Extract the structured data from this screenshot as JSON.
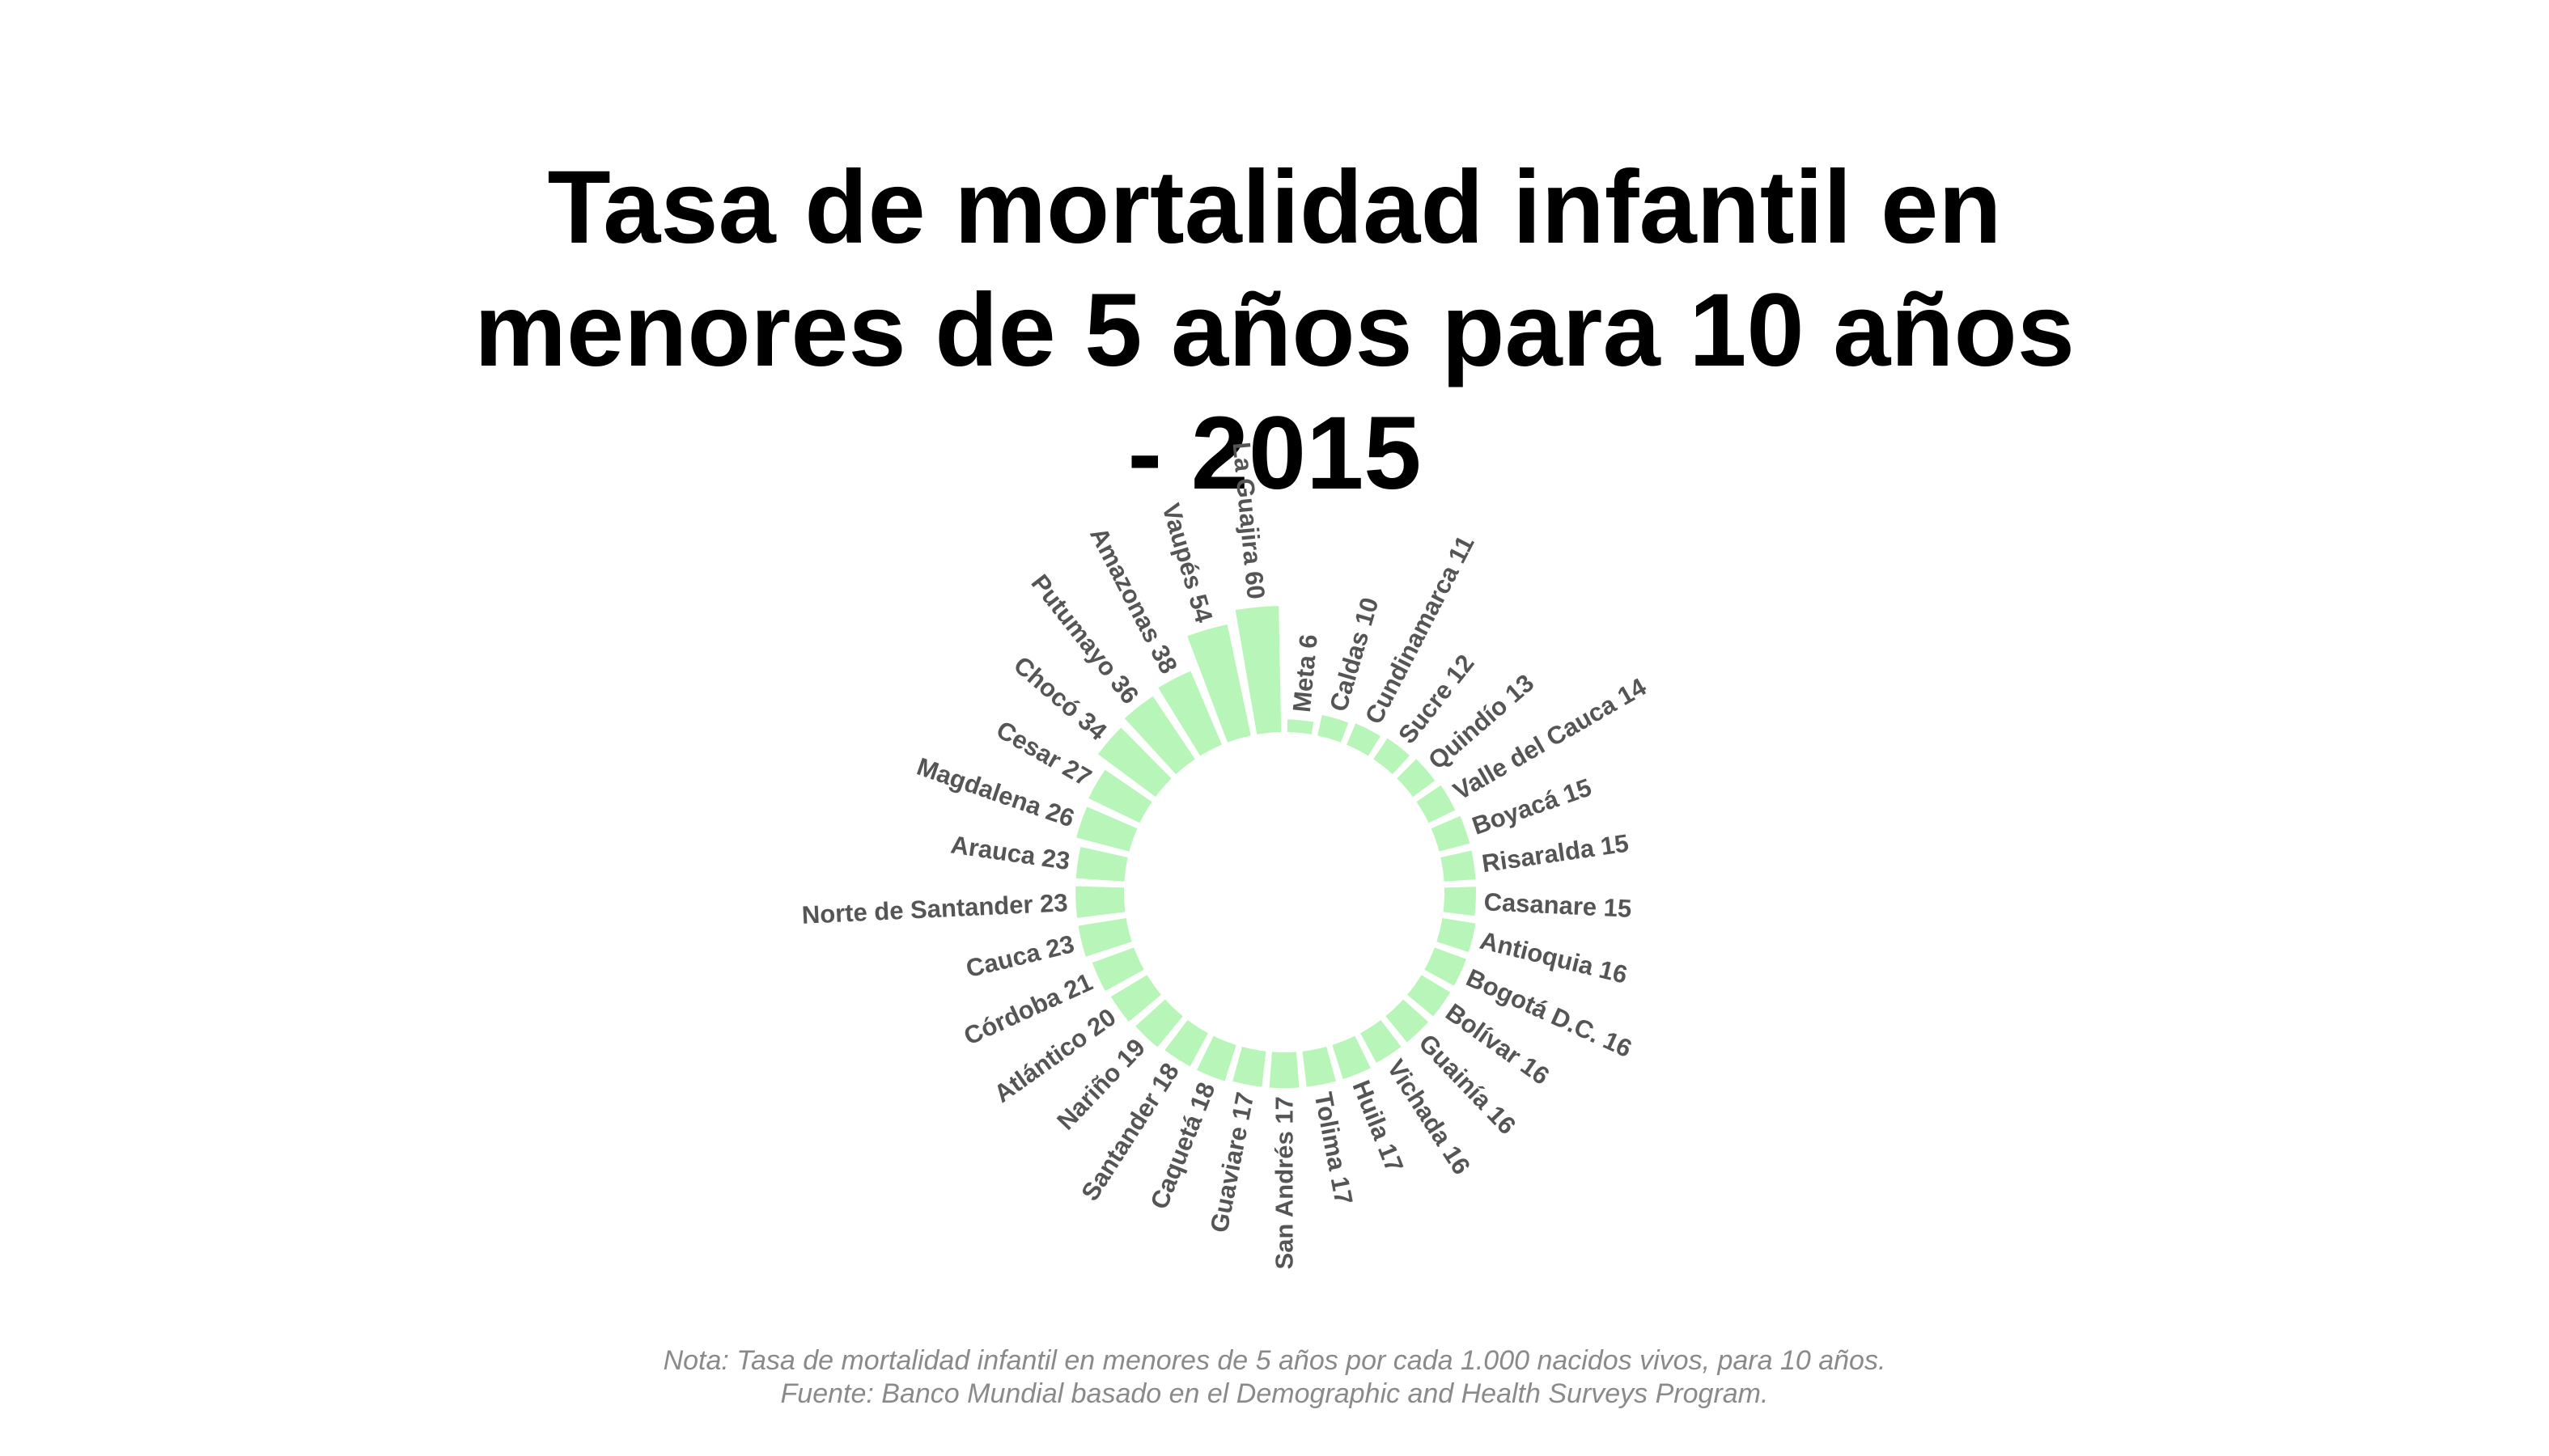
{
  "chart_data": {
    "type": "circular-bar",
    "title_lines": [
      "Tasa de mortalidad infantil en",
      "menores de 5 años para 10 años",
      "- 2015"
    ],
    "caption_lines": [
      "Nota: Tasa de mortalidad infantil en menores de 5 años por cada 1.000 nacidos vivos, para 10 años.",
      "Fuente: Banco Mundial basado en el Demographic and Health Surveys Program."
    ],
    "bar_color": "#b8f5b8",
    "label_color": "#555555",
    "categories": [
      "Meta",
      "Caldas",
      "Cundinamarca",
      "Sucre",
      "Quindío",
      "Valle del Cauca",
      "Boyacá",
      "Risaralda",
      "Casanare",
      "Antioquia",
      "Bogotá D.C.",
      "Bolívar",
      "Guainía",
      "Vichada",
      "Huila",
      "Tolima",
      "San Andrés",
      "Guaviare",
      "Caquetá",
      "Santander",
      "Nariño",
      "Atlántico",
      "Córdoba",
      "Cauca",
      "Norte de Santander",
      "Arauca",
      "Magdalena",
      "Cesar",
      "Chocó",
      "Putumayo",
      "Amazonas",
      "Vaupés",
      "La Guajira"
    ],
    "values": [
      6,
      10,
      11,
      12,
      13,
      14,
      15,
      15,
      15,
      16,
      16,
      16,
      16,
      16,
      17,
      17,
      17,
      17,
      18,
      18,
      19,
      20,
      21,
      23,
      23,
      23,
      26,
      27,
      34,
      36,
      38,
      54,
      60
    ],
    "labels": [
      "Meta 6",
      "Caldas 10",
      "Cundinamarca 11",
      "Sucre 12",
      "Quindío 13",
      "Valle del Cauca 14",
      "Boyacá 15",
      "Risaralda 15",
      "Casanare 15",
      "Antioquia 16",
      "Bogotá D.C. 16",
      "Bolívar 16",
      "Guainía 16",
      "Vichada 16",
      "Huila 17",
      "Tolima 17",
      "San Andrés 17",
      "Guaviare 17",
      "Caquetá 18",
      "Santander 18",
      "Nariño 19",
      "Atlántico 20",
      "Córdoba 21",
      "Cauca 23",
      "Norte de Santander 23",
      "Arauca 23",
      "Magdalena 26",
      "Cesar 27",
      "Chocó 34",
      "Putumayo 36",
      "Amazonas 38",
      "Vaupés 54",
      "La Guajira 60"
    ],
    "ylim": [
      0,
      60
    ]
  }
}
